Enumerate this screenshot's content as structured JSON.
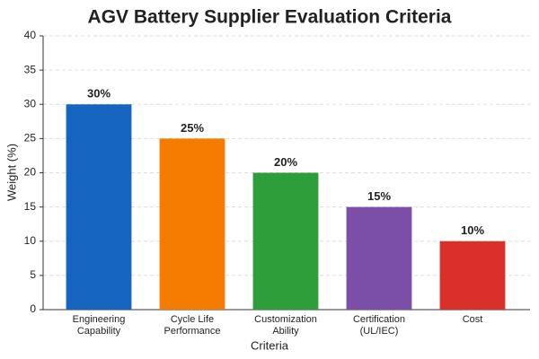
{
  "chart_data": {
    "type": "bar",
    "title": "AGV Battery Supplier Evaluation Criteria",
    "x_label": "Criteria",
    "y_label": "Weight (%)",
    "categories": [
      "Engineering\nCapability",
      "Cycle Life\nPerformance",
      "Customization\nAbility",
      "Certification\n(UL/IEC)",
      "Cost"
    ],
    "values": [
      30,
      25,
      20,
      15,
      10
    ],
    "value_labels": [
      "30%",
      "25%",
      "20%",
      "15%",
      "10%"
    ],
    "colors": [
      "#1565c0",
      "#f57c00",
      "#2e9e3a",
      "#7b4fa8",
      "#d9302a"
    ],
    "ylim": [
      0,
      40
    ],
    "yticks": [
      0,
      5,
      10,
      15,
      20,
      25,
      30,
      35,
      40
    ],
    "grid": true
  }
}
